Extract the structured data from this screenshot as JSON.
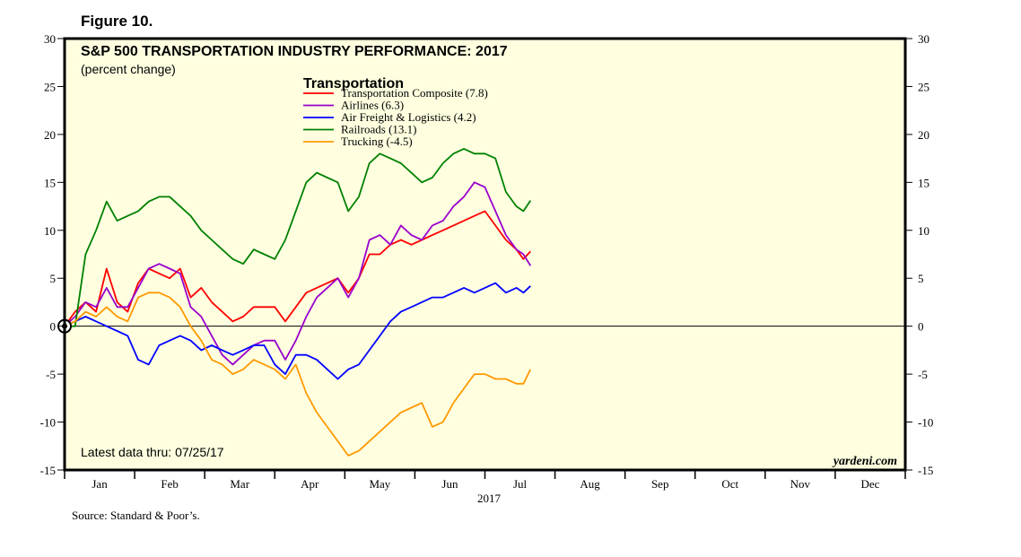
{
  "figure_label": "Figure 10.",
  "source_note": "Source: Standard & Poor’s.",
  "brand": "yardeni.com",
  "chart_data": {
    "type": "line",
    "title": "S&P 500 TRANSPORTATION INDUSTRY PERFORMANCE: 2017",
    "subtitle": "(percent change)",
    "legend_title": "Transportation",
    "legend_position": "top-center",
    "annotation": "Latest data thru: 07/25/17",
    "year_label": "2017",
    "ylim": [
      -15,
      30
    ],
    "yticks": [
      30,
      25,
      20,
      15,
      10,
      5,
      0,
      -5,
      -10,
      -15
    ],
    "ytick_labels": [
      "30",
      "25",
      "20",
      "15",
      "10",
      "5",
      "0",
      "-5",
      "-10",
      "-15"
    ],
    "x_range": [
      0,
      12
    ],
    "months": [
      "Jan",
      "Feb",
      "Mar",
      "Apr",
      "May",
      "Jun",
      "Jul",
      "Aug",
      "Sep",
      "Oct",
      "Nov",
      "Dec"
    ],
    "zero_line": true,
    "baseline_marker": {
      "x": 0,
      "y": 0
    },
    "background_color": "#FFFFE0",
    "x": [
      0.0,
      0.15,
      0.3,
      0.45,
      0.6,
      0.75,
      0.9,
      1.05,
      1.2,
      1.35,
      1.5,
      1.65,
      1.8,
      1.95,
      2.1,
      2.25,
      2.4,
      2.55,
      2.7,
      2.85,
      3.0,
      3.15,
      3.3,
      3.45,
      3.6,
      3.75,
      3.9,
      4.05,
      4.2,
      4.35,
      4.5,
      4.65,
      4.8,
      4.95,
      5.1,
      5.25,
      5.4,
      5.55,
      5.7,
      5.85,
      6.0,
      6.15,
      6.3,
      6.45,
      6.55,
      6.65
    ],
    "series": [
      {
        "name": "Transportation Composite (7.8)",
        "color": "#FF0000",
        "values": [
          0,
          1.5,
          2.5,
          1.5,
          6.0,
          2.5,
          1.5,
          4.5,
          6.0,
          5.5,
          5.0,
          6.0,
          3.0,
          4.0,
          2.5,
          1.5,
          0.5,
          1.0,
          2.0,
          2.0,
          2.0,
          0.5,
          2.0,
          3.5,
          4.0,
          4.5,
          5.0,
          3.5,
          5.0,
          7.5,
          7.5,
          8.5,
          9.0,
          8.5,
          9.0,
          9.5,
          10.0,
          10.5,
          11.0,
          11.5,
          12.0,
          10.5,
          9.0,
          8.0,
          7.0,
          7.8
        ]
      },
      {
        "name": "Airlines (6.3)",
        "color": "#9900CC",
        "values": [
          0,
          1.0,
          2.5,
          2.0,
          4.0,
          2.0,
          2.0,
          4.0,
          6.0,
          6.5,
          6.0,
          5.5,
          2.0,
          1.0,
          -1.0,
          -3.0,
          -4.0,
          -3.0,
          -2.0,
          -1.5,
          -1.5,
          -3.5,
          -1.5,
          1.0,
          3.0,
          4.0,
          5.0,
          3.0,
          5.0,
          9.0,
          9.5,
          8.5,
          10.5,
          9.5,
          9.0,
          10.5,
          11.0,
          12.5,
          13.5,
          15.0,
          14.5,
          12.0,
          9.5,
          8.0,
          7.5,
          6.3
        ]
      },
      {
        "name": "Air Freight & Logistics (4.2)",
        "color": "#0000FF",
        "values": [
          0,
          0.5,
          1.0,
          0.5,
          0.0,
          -0.5,
          -1.0,
          -3.5,
          -4.0,
          -2.0,
          -1.5,
          -1.0,
          -1.5,
          -2.5,
          -2.0,
          -2.5,
          -3.0,
          -2.5,
          -2.0,
          -2.0,
          -4.0,
          -5.0,
          -3.0,
          -3.0,
          -3.5,
          -4.5,
          -5.5,
          -4.5,
          -4.0,
          -2.5,
          -1.0,
          0.5,
          1.5,
          2.0,
          2.5,
          3.0,
          3.0,
          3.5,
          4.0,
          3.5,
          4.0,
          4.5,
          3.5,
          4.0,
          3.5,
          4.2
        ]
      },
      {
        "name": "Railroads (13.1)",
        "color": "#008000",
        "values": [
          0,
          0.0,
          7.5,
          10.0,
          13.0,
          11.0,
          11.5,
          12.0,
          13.0,
          13.5,
          13.5,
          12.5,
          11.5,
          10.0,
          9.0,
          8.0,
          7.0,
          6.5,
          8.0,
          7.5,
          7.0,
          9.0,
          12.0,
          15.0,
          16.0,
          15.5,
          15.0,
          12.0,
          13.5,
          17.0,
          18.0,
          17.5,
          17.0,
          16.0,
          15.0,
          15.5,
          17.0,
          18.0,
          18.5,
          18.0,
          18.0,
          17.5,
          14.0,
          12.5,
          12.0,
          13.1
        ]
      },
      {
        "name": "Trucking (-4.5)",
        "color": "#FF9900",
        "values": [
          0,
          0.5,
          1.5,
          1.0,
          2.0,
          1.0,
          0.5,
          3.0,
          3.5,
          3.5,
          3.0,
          2.0,
          0.0,
          -1.5,
          -3.5,
          -4.0,
          -5.0,
          -4.5,
          -3.5,
          -4.0,
          -4.5,
          -5.5,
          -4.0,
          -7.0,
          -9.0,
          -10.5,
          -12.0,
          -13.5,
          -13.0,
          -12.0,
          -11.0,
          -10.0,
          -9.0,
          -8.5,
          -8.0,
          -10.5,
          -10.0,
          -8.0,
          -6.5,
          -5.0,
          -5.0,
          -5.5,
          -5.5,
          -6.0,
          -6.0,
          -4.5
        ]
      }
    ]
  }
}
